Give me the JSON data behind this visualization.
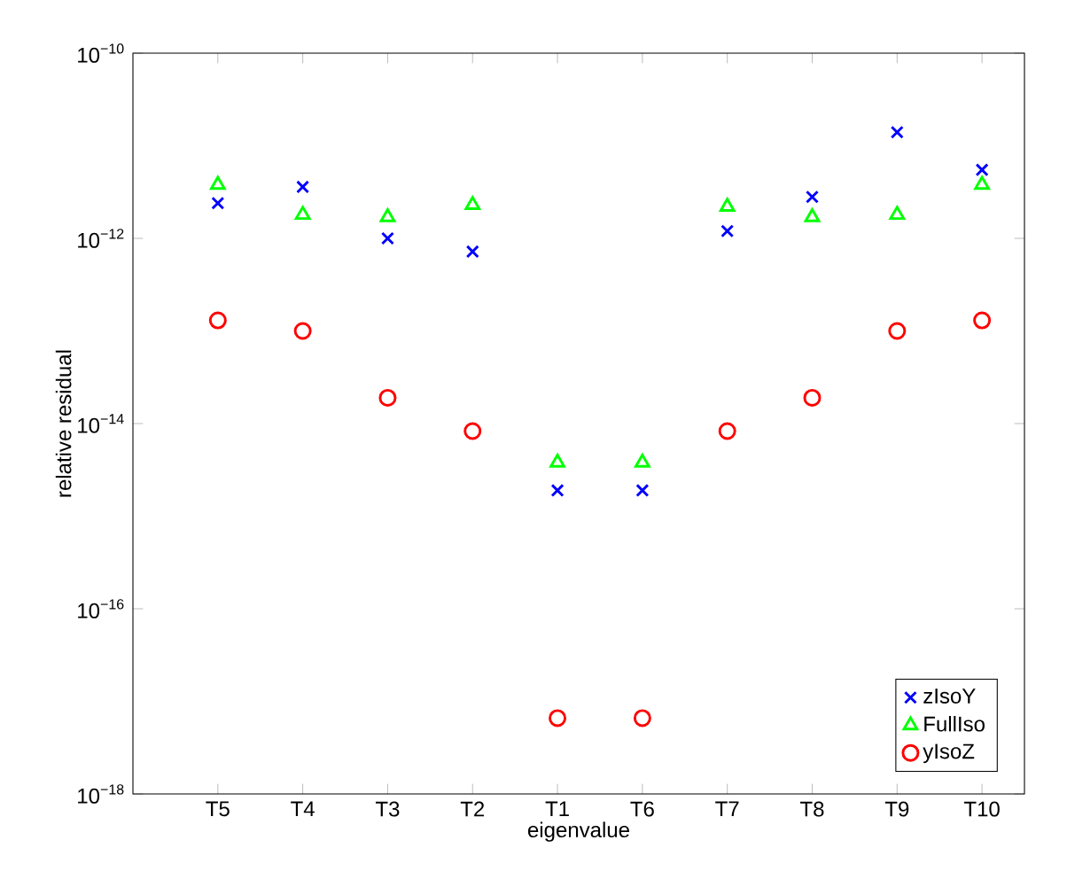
{
  "chart_data": {
    "type": "scatter",
    "xlabel": "eigenvalue",
    "ylabel": "relative residual",
    "categories": [
      "T5",
      "T4",
      "T3",
      "T2",
      "T1",
      "T6",
      "T7",
      "T8",
      "T9",
      "T10"
    ],
    "log": "y",
    "ylim": [
      1e-18,
      1e-10
    ],
    "yticks": [
      {
        "value": 1e-18,
        "label": "10$^{−18}$"
      },
      {
        "value": 1e-16,
        "label": "10$^{−16}$"
      },
      {
        "value": 1e-14,
        "label": "10$^{−14}$"
      },
      {
        "value": 1e-12,
        "label": "10$^{−12}$"
      },
      {
        "value": 1e-10,
        "label": "10$^{−10}$"
      }
    ],
    "grid": false,
    "legend": "bottom right",
    "series": [
      {
        "name": "zIsoY",
        "color": "#0000ff",
        "marker": "cross",
        "values": [
          2.4e-12,
          3.6e-12,
          1e-12,
          7.2e-13,
          1.9e-15,
          1.9e-15,
          1.2e-12,
          2.8e-12,
          1.4e-11,
          5.5e-12
        ]
      },
      {
        "name": "FullIso",
        "color": "#00ff00",
        "marker": "triangle",
        "values": [
          3.8e-12,
          1.8e-12,
          1.7e-12,
          2.3e-12,
          3.8e-15,
          3.8e-15,
          2.2e-12,
          1.7e-12,
          1.8e-12,
          3.8e-12
        ]
      },
      {
        "name": "yIsoZ",
        "color": "#ff0000",
        "marker": "circle",
        "values": [
          1.3e-13,
          1e-13,
          1.9e-14,
          8.3e-15,
          6.6e-18,
          6.6e-18,
          8.3e-15,
          1.9e-14,
          1e-13,
          1.3e-13
        ]
      }
    ]
  }
}
